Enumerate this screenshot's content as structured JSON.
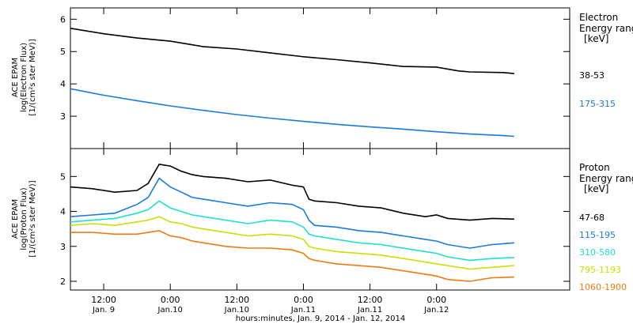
{
  "chart_data": [
    {
      "type": "line",
      "panel": "electron",
      "ylabel": [
        "ACE EPAM",
        "log(Electron Flux)",
        "[1/(cm²s ster MeV)]"
      ],
      "ylim": [
        2.0,
        6.35
      ],
      "yticks": [
        3,
        4,
        5,
        6
      ],
      "legend_title": [
        "Electron",
        "Energy ranges"
      ],
      "legend_unit": "[keV]",
      "series": [
        {
          "name": "38-53",
          "color": "#000000",
          "x": [
            0,
            6,
            12,
            18,
            24,
            30,
            36,
            42,
            48,
            54,
            60,
            66,
            70,
            72,
            78,
            80
          ],
          "y": [
            5.72,
            5.55,
            5.42,
            5.32,
            5.15,
            5.08,
            4.96,
            4.84,
            4.75,
            4.65,
            4.54,
            4.52,
            4.4,
            4.37,
            4.35,
            4.32
          ]
        },
        {
          "name": "175-315",
          "color": "#1a7ae0",
          "x": [
            0,
            6,
            12,
            18,
            24,
            30,
            36,
            42,
            48,
            54,
            60,
            66,
            72,
            78,
            80
          ],
          "y": [
            3.85,
            3.65,
            3.48,
            3.32,
            3.18,
            3.05,
            2.94,
            2.84,
            2.75,
            2.67,
            2.6,
            2.52,
            2.45,
            2.4,
            2.38
          ]
        }
      ]
    },
    {
      "type": "line",
      "panel": "proton",
      "ylabel": [
        "ACE EPAM",
        "log(Proton Flux)",
        "[1/(cm²s ster MeV)]"
      ],
      "ylim": [
        1.75,
        5.8
      ],
      "yticks": [
        2,
        3,
        4,
        5
      ],
      "legend_title": [
        "Proton",
        "Energy ranges"
      ],
      "legend_unit": "[keV]",
      "series": [
        {
          "name": "47-68",
          "color": "#000000",
          "x": [
            0,
            4,
            8,
            12,
            14,
            16,
            18,
            20,
            22,
            24,
            28,
            32,
            36,
            40,
            42,
            43,
            44,
            48,
            52,
            56,
            60,
            64,
            66,
            68,
            72,
            76,
            80
          ],
          "y": [
            4.7,
            4.65,
            4.55,
            4.6,
            4.8,
            5.35,
            5.3,
            5.15,
            5.05,
            5.0,
            4.95,
            4.85,
            4.9,
            4.75,
            4.7,
            4.35,
            4.3,
            4.25,
            4.15,
            4.1,
            3.95,
            3.85,
            3.9,
            3.8,
            3.75,
            3.8,
            3.78
          ]
        },
        {
          "name": "115-195",
          "color": "#1a7ae0",
          "x": [
            0,
            4,
            8,
            12,
            14,
            16,
            18,
            20,
            22,
            24,
            28,
            32,
            36,
            40,
            42,
            43,
            44,
            48,
            52,
            56,
            60,
            64,
            66,
            68,
            72,
            76,
            80
          ],
          "y": [
            3.85,
            3.9,
            3.95,
            4.2,
            4.4,
            4.95,
            4.7,
            4.55,
            4.4,
            4.35,
            4.25,
            4.15,
            4.25,
            4.2,
            4.05,
            3.75,
            3.6,
            3.55,
            3.45,
            3.4,
            3.3,
            3.2,
            3.15,
            3.05,
            2.95,
            3.05,
            3.1
          ]
        },
        {
          "name": "310-580",
          "color": "#1fe0cc",
          "x": [
            0,
            4,
            8,
            12,
            14,
            16,
            18,
            20,
            22,
            24,
            28,
            32,
            36,
            40,
            42,
            43,
            44,
            48,
            52,
            56,
            60,
            64,
            66,
            68,
            72,
            76,
            80
          ],
          "y": [
            3.7,
            3.75,
            3.8,
            3.95,
            4.05,
            4.3,
            4.1,
            4.0,
            3.9,
            3.85,
            3.75,
            3.65,
            3.75,
            3.7,
            3.55,
            3.35,
            3.3,
            3.2,
            3.1,
            3.05,
            2.95,
            2.85,
            2.8,
            2.7,
            2.6,
            2.65,
            2.68
          ]
        },
        {
          "name": "795-1193",
          "color": "#c8e000",
          "x": [
            0,
            4,
            8,
            12,
            14,
            16,
            18,
            20,
            22,
            24,
            28,
            32,
            36,
            40,
            42,
            43,
            44,
            48,
            52,
            56,
            60,
            64,
            66,
            68,
            72,
            76,
            80
          ],
          "y": [
            3.6,
            3.65,
            3.6,
            3.7,
            3.75,
            3.85,
            3.7,
            3.65,
            3.55,
            3.5,
            3.4,
            3.3,
            3.35,
            3.3,
            3.2,
            3.0,
            2.95,
            2.85,
            2.8,
            2.75,
            2.65,
            2.55,
            2.5,
            2.45,
            2.35,
            2.4,
            2.45
          ]
        },
        {
          "name": "1060-1900",
          "color": "#f07a10",
          "x": [
            0,
            4,
            8,
            12,
            14,
            16,
            18,
            20,
            22,
            24,
            28,
            32,
            36,
            40,
            42,
            43,
            44,
            48,
            52,
            56,
            60,
            64,
            66,
            68,
            72,
            76,
            80
          ],
          "y": [
            3.4,
            3.4,
            3.35,
            3.35,
            3.4,
            3.45,
            3.3,
            3.25,
            3.15,
            3.1,
            3.0,
            2.95,
            2.95,
            2.9,
            2.8,
            2.65,
            2.6,
            2.5,
            2.45,
            2.4,
            2.3,
            2.2,
            2.15,
            2.05,
            2.0,
            2.1,
            2.12
          ]
        }
      ]
    }
  ],
  "x_axis": {
    "xlim": [
      0,
      90
    ],
    "ticks": [
      {
        "x": 6,
        "time": "12:00",
        "date": "Jan. 9"
      },
      {
        "x": 18,
        "time": "0:00",
        "date": "Jan.10"
      },
      {
        "x": 30,
        "time": "12:00",
        "date": "Jan.10"
      },
      {
        "x": 42,
        "time": "0:00",
        "date": "Jan.11"
      },
      {
        "x": 54,
        "time": "12:00",
        "date": "Jan.11"
      },
      {
        "x": 66,
        "time": "0:00",
        "date": "Jan.12"
      }
    ],
    "xlabel": "hours:minutes, Jan.  9, 2014 - Jan. 12, 2014"
  }
}
